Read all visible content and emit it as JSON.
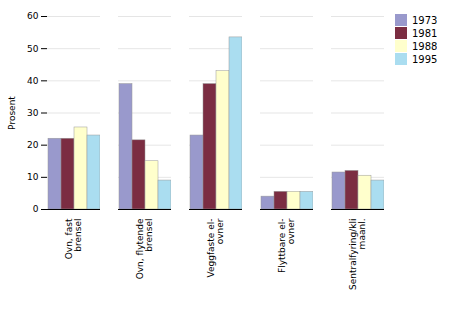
{
  "chart_data": {
    "type": "bar",
    "categories": [
      "Ovn, fast\nbrensel",
      "Ovn, flytende\nbrensel",
      "Veggfaste el-\novner",
      "Flyttbare el-\novner",
      "Sentralfyring/kli\nmaanl."
    ],
    "series": [
      {
        "name": "1973",
        "color": "#9999cc",
        "values": [
          22,
          39,
          23,
          4,
          11.5
        ]
      },
      {
        "name": "1981",
        "color": "#7b2d42",
        "values": [
          22,
          21.5,
          39,
          5.5,
          12
        ]
      },
      {
        "name": "1988",
        "color": "#ffffcc",
        "values": [
          25.5,
          15,
          43,
          5.5,
          10.5
        ]
      },
      {
        "name": "1995",
        "color": "#aaddf0",
        "values": [
          23,
          9,
          53.5,
          5.5,
          9
        ]
      }
    ],
    "ylabel": "Prosent",
    "ylim": [
      0,
      60
    ],
    "yticks": [
      0,
      10,
      20,
      30,
      40,
      50,
      60
    ],
    "grid": true,
    "legend": "upper right"
  }
}
